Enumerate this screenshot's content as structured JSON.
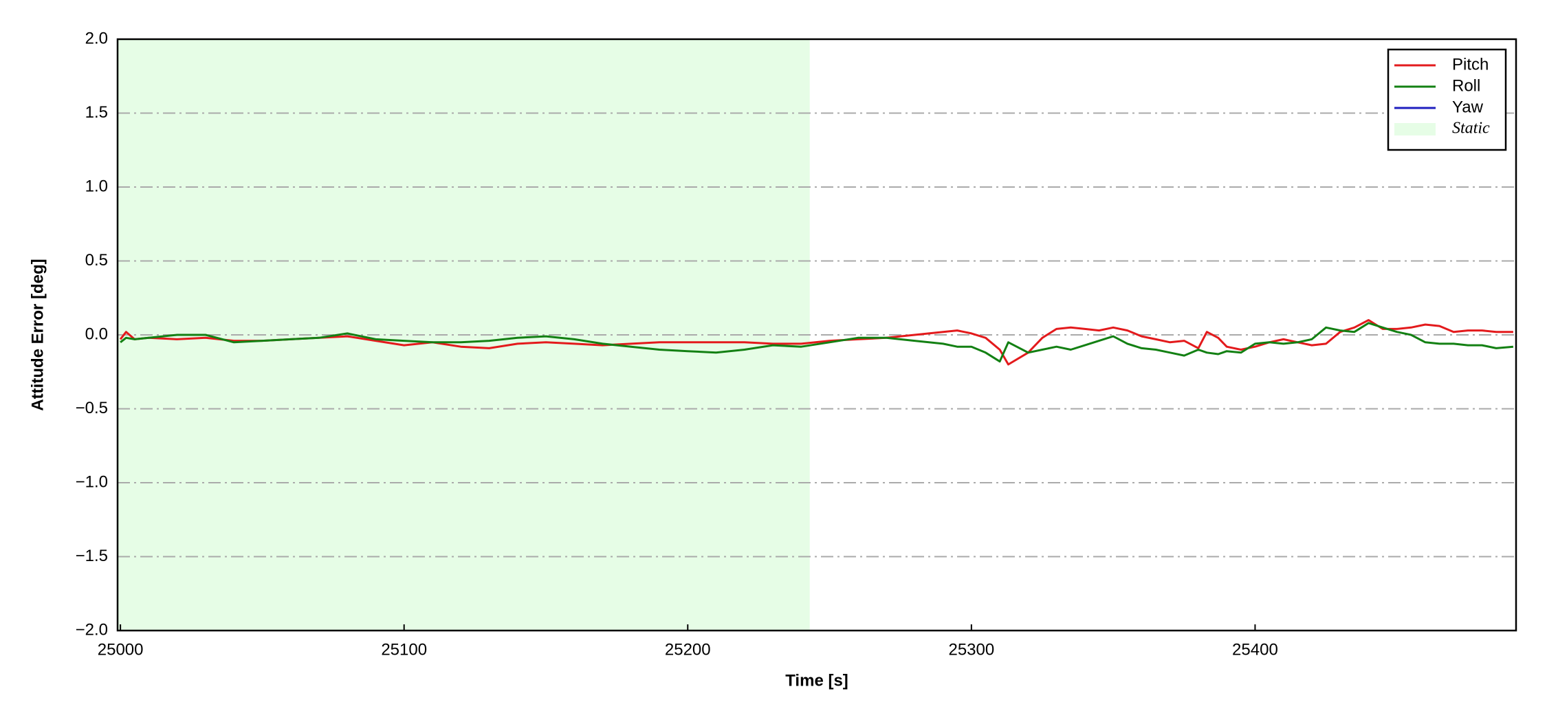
{
  "chart_data": {
    "type": "line",
    "xlabel": "Time [s]",
    "ylabel": "Attitude Error [deg]",
    "x": [
      25000,
      25002,
      25005,
      25010,
      25020,
      25030,
      25040,
      25050,
      25060,
      25070,
      25080,
      25090,
      25100,
      25110,
      25120,
      25130,
      25140,
      25150,
      25160,
      25170,
      25180,
      25190,
      25200,
      25210,
      25220,
      25230,
      25240,
      25250,
      25260,
      25270,
      25280,
      25290,
      25295,
      25300,
      25305,
      25310,
      25313,
      25320,
      25325,
      25330,
      25335,
      25340,
      25345,
      25350,
      25355,
      25360,
      25365,
      25370,
      25375,
      25380,
      25383,
      25387,
      25390,
      25395,
      25400,
      25405,
      25410,
      25415,
      25420,
      25425,
      25430,
      25435,
      25440,
      25445,
      25450,
      25455,
      25460,
      25465,
      25470,
      25475,
      25480,
      25485,
      25491
    ],
    "series": [
      {
        "name": "Pitch",
        "color": "#e31a1c",
        "values": [
          -0.03,
          0.02,
          -0.03,
          -0.02,
          -0.03,
          -0.02,
          -0.04,
          -0.04,
          -0.03,
          -0.02,
          -0.01,
          -0.04,
          -0.07,
          -0.05,
          -0.08,
          -0.09,
          -0.06,
          -0.05,
          -0.06,
          -0.07,
          -0.06,
          -0.05,
          -0.05,
          -0.05,
          -0.05,
          -0.06,
          -0.06,
          -0.04,
          -0.03,
          -0.02,
          0.0,
          0.02,
          0.03,
          0.01,
          -0.02,
          -0.1,
          -0.2,
          -0.12,
          -0.02,
          0.04,
          0.05,
          0.04,
          0.03,
          0.05,
          0.03,
          -0.01,
          -0.03,
          -0.05,
          -0.04,
          -0.09,
          0.02,
          -0.02,
          -0.08,
          -0.1,
          -0.08,
          -0.05,
          -0.03,
          -0.05,
          -0.07,
          -0.06,
          0.02,
          0.05,
          0.1,
          0.04,
          0.04,
          0.05,
          0.07,
          0.06,
          0.02,
          0.03,
          0.03,
          0.02,
          0.02
        ]
      },
      {
        "name": "Roll",
        "color": "#138013",
        "values": [
          -0.05,
          -0.02,
          -0.03,
          -0.02,
          0.0,
          0.0,
          -0.05,
          -0.04,
          -0.03,
          -0.02,
          0.01,
          -0.03,
          -0.04,
          -0.05,
          -0.05,
          -0.04,
          -0.02,
          -0.01,
          -0.03,
          -0.06,
          -0.08,
          -0.1,
          -0.11,
          -0.12,
          -0.1,
          -0.07,
          -0.08,
          -0.05,
          -0.02,
          -0.02,
          -0.04,
          -0.06,
          -0.08,
          -0.08,
          -0.12,
          -0.18,
          -0.05,
          -0.12,
          -0.1,
          -0.08,
          -0.1,
          -0.07,
          -0.04,
          -0.01,
          -0.06,
          -0.09,
          -0.1,
          -0.12,
          -0.14,
          -0.1,
          -0.12,
          -0.13,
          -0.11,
          -0.12,
          -0.06,
          -0.05,
          -0.06,
          -0.05,
          -0.03,
          0.05,
          0.03,
          0.02,
          0.08,
          0.05,
          0.02,
          0.0,
          -0.05,
          -0.06,
          -0.06,
          -0.07,
          -0.07,
          -0.09,
          -0.08
        ]
      },
      {
        "name": "Yaw",
        "color": "#1f1fbf",
        "values": [
          null,
          null,
          null,
          null,
          null,
          null,
          null,
          null,
          null,
          null,
          null,
          null,
          null,
          null,
          null,
          null,
          null,
          null,
          null,
          null,
          null,
          null,
          null,
          null,
          null,
          null,
          null,
          null,
          null,
          null,
          null,
          null,
          null,
          null,
          null,
          null,
          null,
          null,
          null,
          null,
          null,
          null,
          null,
          null,
          null,
          null,
          null,
          null,
          null,
          null,
          null,
          null,
          null,
          null,
          null,
          null,
          null,
          null,
          null,
          null,
          null,
          null,
          null,
          null,
          null,
          null,
          null,
          null,
          null,
          null,
          null,
          null,
          null
        ]
      }
    ],
    "shaded_region": {
      "name": "Static",
      "color": "#e6fde6",
      "x": [
        24999,
        25243
      ]
    },
    "xlim": [
      24999,
      25492
    ],
    "xticks": [
      25000,
      25100,
      25200,
      25300,
      25400
    ],
    "ylim": [
      -2,
      2
    ],
    "yticks": [
      {
        "value": -2,
        "label": "−2.0"
      },
      {
        "value": -1.5,
        "label": "−1.5"
      },
      {
        "value": -1,
        "label": "−1.0"
      },
      {
        "value": -0.5,
        "label": "−0.5"
      },
      {
        "value": 0,
        "label": "0.0"
      },
      {
        "value": 0.5,
        "label": "0.5"
      },
      {
        "value": 1,
        "label": "1.0"
      },
      {
        "value": 1.5,
        "label": "1.5"
      },
      {
        "value": 2,
        "label": "2.0"
      }
    ],
    "grid": true,
    "legend": "upper right"
  }
}
